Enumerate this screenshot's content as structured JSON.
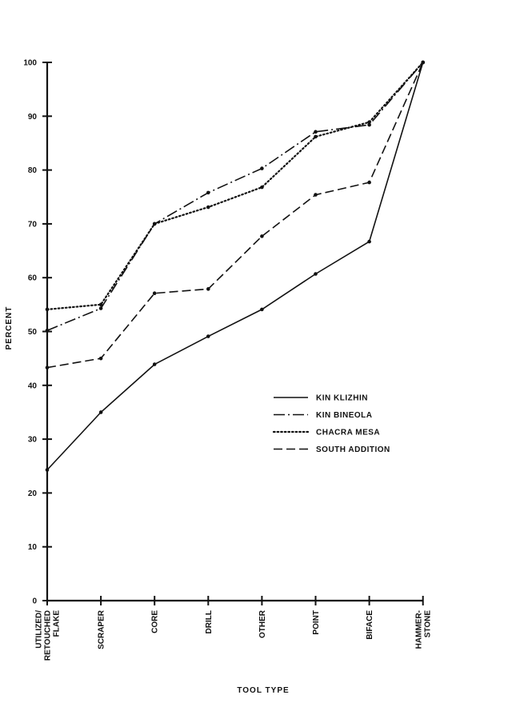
{
  "chart_data": {
    "type": "line",
    "title": "",
    "xlabel": "TOOL TYPE",
    "ylabel": "PERCENT",
    "ylim": [
      0,
      100
    ],
    "yticks": [
      0,
      10,
      20,
      30,
      40,
      50,
      60,
      70,
      80,
      90,
      100
    ],
    "categories": [
      [
        "UTILIZED/",
        "RETOUCHED",
        "FLAKE"
      ],
      [
        "SCRAPER"
      ],
      [
        "CORE"
      ],
      [
        "DRILL"
      ],
      [
        "OTHER"
      ],
      [
        "POINT"
      ],
      [
        "BIFACE"
      ],
      [
        "HAMMER-",
        "STONE"
      ]
    ],
    "legend_position": "center-right",
    "grid": false,
    "series": [
      {
        "name": "KIN KLIZHIN",
        "style": "solid",
        "values": [
          24.3,
          35.0,
          43.9,
          49.1,
          54.1,
          60.7,
          66.7,
          100
        ]
      },
      {
        "name": "KIN BINEOLA",
        "style": "dashdot",
        "values": [
          50.2,
          54.3,
          70.0,
          75.8,
          80.3,
          87.1,
          88.4,
          100
        ]
      },
      {
        "name": "CHACRA MESA",
        "style": "dotted",
        "values": [
          54.1,
          55.0,
          70.0,
          73.1,
          76.8,
          86.2,
          88.9,
          100
        ]
      },
      {
        "name": "SOUTH ADDITION",
        "style": "dashed",
        "values": [
          43.3,
          45.0,
          57.1,
          57.9,
          67.7,
          75.4,
          77.7,
          100
        ]
      }
    ]
  }
}
